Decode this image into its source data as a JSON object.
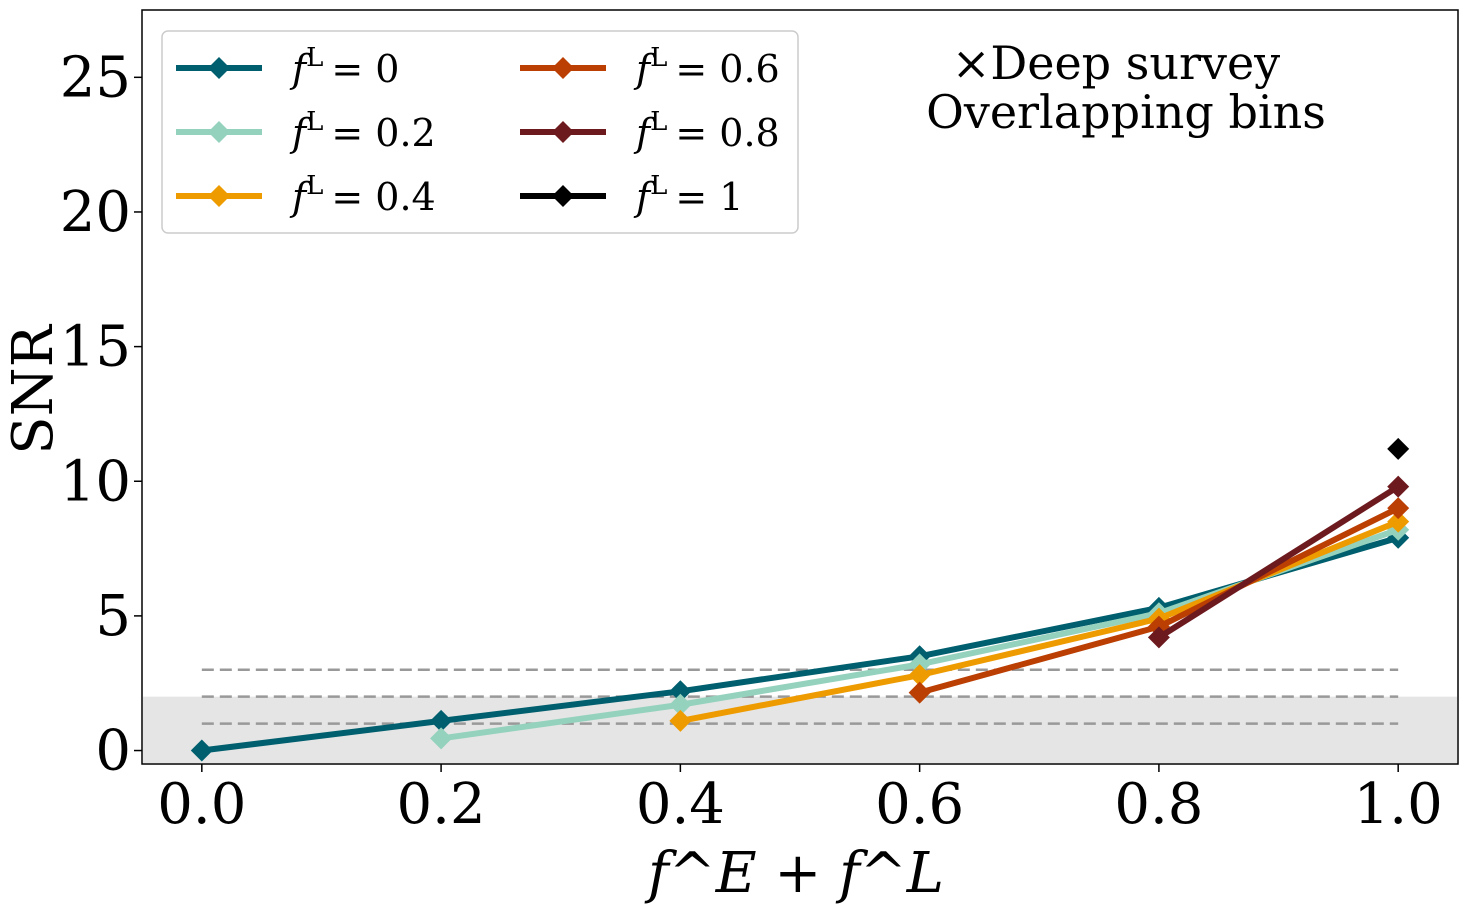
{
  "chart_data": {
    "type": "line",
    "xlabel": "f^E + f^L",
    "ylabel": "SNR",
    "xlim": [
      -0.05,
      1.05
    ],
    "ylim": [
      -0.5,
      27.5
    ],
    "x_ticks": [
      "0.0",
      "0.2",
      "0.4",
      "0.6",
      "0.8",
      "1.0"
    ],
    "y_ticks": [
      "0",
      "5",
      "10",
      "15",
      "20",
      "25"
    ],
    "grid": false,
    "legend_placement": "top-left",
    "annotations": [
      "×Deep survey",
      "Overlapping bins"
    ],
    "shaded_band": {
      "y0": 0,
      "y1": 2,
      "color": "#e5e5e5"
    },
    "reference_lines": {
      "y": [
        1,
        2,
        3
      ],
      "style": "dashed",
      "color": "#999999",
      "x_range": [
        0.0,
        1.0
      ]
    },
    "series": [
      {
        "name": "f^L = 0",
        "legend_label": "f",
        "legend_sup": "L",
        "legend_value": "= 0",
        "color": "#005f6e",
        "x": [
          0.0,
          0.2,
          0.4,
          0.6,
          0.8,
          1.0
        ],
        "values": [
          0.0,
          1.1,
          2.2,
          3.5,
          5.3,
          7.9
        ]
      },
      {
        "name": "f^L = 0.2",
        "legend_label": "f",
        "legend_sup": "L",
        "legend_value": "= 0.2",
        "color": "#94d2bd",
        "x": [
          0.2,
          0.4,
          0.6,
          0.8,
          1.0
        ],
        "values": [
          0.45,
          1.7,
          3.2,
          5.1,
          8.2
        ]
      },
      {
        "name": "f^L = 0.4",
        "legend_label": "f",
        "legend_sup": "L",
        "legend_value": "= 0.4",
        "color": "#ee9b00",
        "x": [
          0.4,
          0.6,
          0.8,
          1.0
        ],
        "values": [
          1.1,
          2.8,
          4.9,
          8.5
        ]
      },
      {
        "name": "f^L = 0.6",
        "legend_label": "f",
        "legend_sup": "L",
        "legend_value": "= 0.6",
        "color": "#bb3e03",
        "x": [
          0.6,
          0.8,
          1.0
        ],
        "values": [
          2.15,
          4.6,
          9.0
        ]
      },
      {
        "name": "f^L = 0.8",
        "legend_label": "f",
        "legend_sup": "L",
        "legend_value": "= 0.8",
        "color": "#6d1a1f",
        "x": [
          0.8,
          1.0
        ],
        "values": [
          4.2,
          9.8
        ]
      },
      {
        "name": "f^L = 1",
        "legend_label": "f",
        "legend_sup": "L",
        "legend_value": "= 1",
        "color": "#000000",
        "x": [
          1.0
        ],
        "values": [
          11.2
        ]
      }
    ]
  }
}
